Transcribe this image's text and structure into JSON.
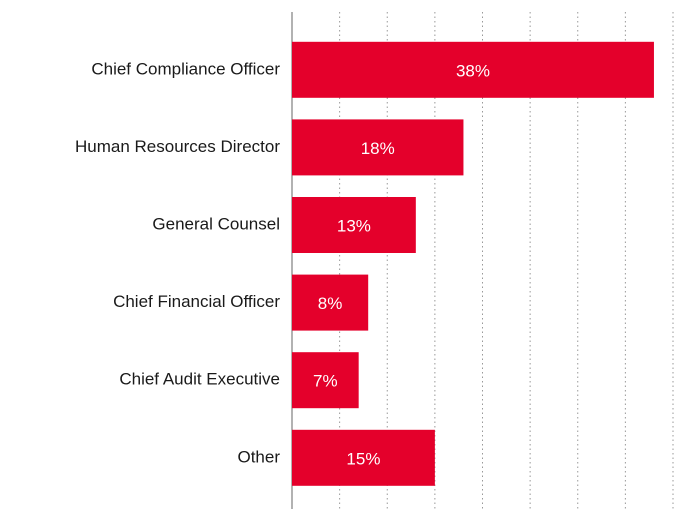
{
  "chart_data": {
    "type": "bar",
    "orientation": "horizontal",
    "categories": [
      "Chief Compliance Officer",
      "Human Resources Director",
      "General Counsel",
      "Chief Financial Officer",
      "Chief Audit Executive",
      "Other"
    ],
    "values": [
      38,
      18,
      13,
      8,
      7,
      15
    ],
    "value_labels": [
      "38%",
      "18%",
      "13%",
      "8%",
      "7%",
      "15%"
    ],
    "color": "#e4002b",
    "xlim": [
      0,
      40
    ],
    "xticks": [
      0,
      5,
      10,
      15,
      20,
      25,
      30,
      35,
      40
    ],
    "grid": true
  }
}
